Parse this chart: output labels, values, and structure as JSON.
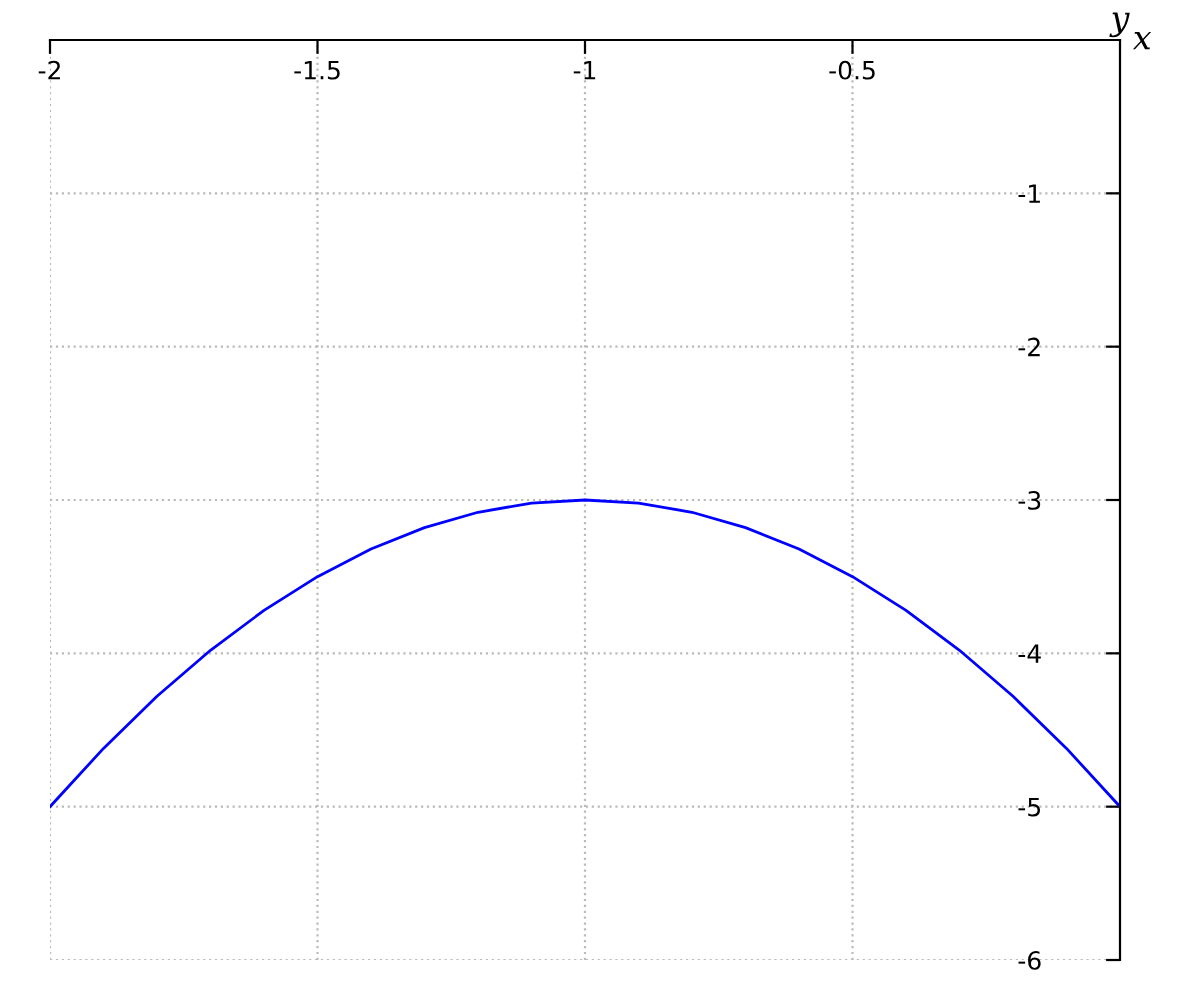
{
  "chart_data": {
    "type": "line",
    "xlabel": "x",
    "ylabel": "y",
    "x": [
      -2,
      -1.9,
      -1.8,
      -1.7,
      -1.6,
      -1.5,
      -1.4,
      -1.3,
      -1.2,
      -1.1,
      -1,
      -0.9,
      -0.8,
      -0.7,
      -0.6,
      -0.5,
      -0.4,
      -0.3,
      -0.2,
      -0.1,
      0
    ],
    "series": [
      {
        "color": "#0000ff",
        "values": [
          -5,
          -4.62,
          -4.28,
          -3.98,
          -3.72,
          -3.5,
          -3.32,
          -3.18,
          -3.08,
          -3.02,
          -3,
          -3.02,
          -3.08,
          -3.18,
          -3.32,
          -3.5,
          -3.72,
          -3.98,
          -4.28,
          -4.62,
          -5
        ]
      }
    ],
    "xlim": [
      -2,
      0
    ],
    "ylim": [
      -6,
      0
    ],
    "xticks": [
      -2,
      -1.5,
      -1,
      -0.5
    ],
    "yticks": [
      -1,
      -2,
      -3,
      -4,
      -5,
      -6
    ],
    "grid": true,
    "marker": "none",
    "line_style": "solid",
    "legend": false
  }
}
